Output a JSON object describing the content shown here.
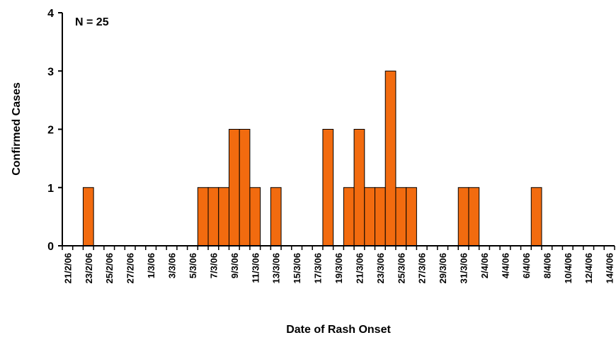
{
  "chart_data": {
    "type": "bar",
    "annotation": "N = 25",
    "y_label": "Confirmed Cases",
    "x_label": "Date of Rash Onset",
    "categories": [
      "21/2/06",
      null,
      "23/2/06",
      null,
      "25/2/06",
      null,
      "27/2/06",
      null,
      "1/3/06",
      null,
      "3/3/06",
      null,
      "5/3/06",
      null,
      "7/3/06",
      null,
      "9/3/06",
      null,
      "11/3/06",
      null,
      "13/3/06",
      null,
      "15/3/06",
      null,
      "17/3/06",
      null,
      "19/3/06",
      null,
      "21/3/06",
      null,
      "23/3/06",
      null,
      "25/3/06",
      null,
      "27/3/06",
      null,
      "29/3/06",
      null,
      "31/3/06",
      null,
      "2/4/06",
      null,
      "4/4/06",
      null,
      "6/4/06",
      null,
      "8/4/06",
      null,
      "10/4/06",
      null,
      "12/4/06",
      null,
      "14/4/06"
    ],
    "values": [
      0,
      0,
      1,
      0,
      0,
      0,
      0,
      0,
      0,
      0,
      0,
      0,
      0,
      1,
      1,
      1,
      2,
      2,
      1,
      0,
      1,
      0,
      0,
      0,
      0,
      2,
      0,
      1,
      2,
      1,
      1,
      3,
      1,
      1,
      0,
      0,
      0,
      0,
      1,
      1,
      0,
      0,
      0,
      0,
      0,
      1,
      0,
      0,
      0,
      0,
      0,
      0,
      0
    ],
    "color": "#f26b0f",
    "ylim": [
      0,
      4
    ],
    "yticks": [
      0,
      1,
      2,
      3,
      4
    ],
    "grid": false
  }
}
